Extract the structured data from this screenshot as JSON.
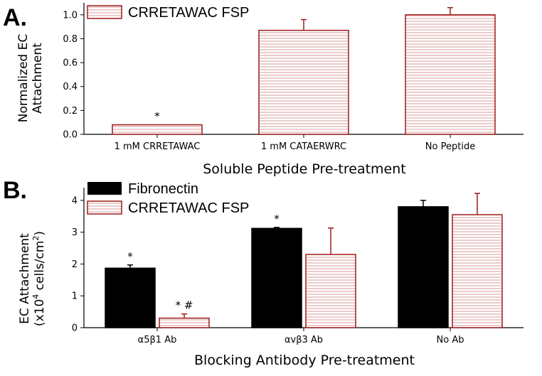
{
  "colors": {
    "hatch_line": "#d99a9a",
    "hatch_border": "#9e1b1b",
    "solid_fill": "#000000",
    "axis": "#000000"
  },
  "chart_data": [
    {
      "panel": "A.",
      "type": "bar",
      "categories": [
        "1 mM CRRETAWAC",
        "1 mM CATAERWRC",
        "No Peptide"
      ],
      "series": [
        {
          "name": "CRRETAWAC FSP",
          "style": "hatched",
          "values": [
            0.08,
            0.87,
            1.0
          ],
          "errors": [
            0.0,
            0.09,
            0.06
          ],
          "annotations": [
            "*",
            "",
            ""
          ]
        }
      ],
      "xlabel": "Soluble Peptide Pre-treatment",
      "ylabel_lines": [
        "Normalized EC",
        "Attachment"
      ],
      "ylim": [
        0,
        1.1
      ],
      "yticks": [
        "0.0",
        "0.2",
        "0.4",
        "0.6",
        "0.8",
        "1.0"
      ],
      "ytick_values": [
        0,
        0.2,
        0.4,
        0.6,
        0.8,
        1.0
      ],
      "legend_position": "top-left",
      "grid": false
    },
    {
      "panel": "B.",
      "type": "bar",
      "categories": [
        "α5β1 Ab",
        "αvβ3 Ab",
        "No Ab"
      ],
      "series": [
        {
          "name": "Fibronectin",
          "style": "solid",
          "values": [
            1.87,
            3.12,
            3.8
          ],
          "errors": [
            0.1,
            0.03,
            0.2
          ],
          "annotations": [
            "*",
            "*",
            ""
          ]
        },
        {
          "name": "CRRETAWAC FSP",
          "style": "hatched",
          "values": [
            0.3,
            2.3,
            3.55
          ],
          "errors": [
            0.13,
            0.83,
            0.67
          ],
          "annotations": [
            "* #",
            "",
            ""
          ]
        }
      ],
      "xlabel": "Blocking Antibody Pre-treatment",
      "ylabel_line1": "EC Attachment",
      "ylabel_line2": {
        "pre": "(x10",
        "sup1": "4",
        "mid": " cells/cm",
        "sup2": "2",
        "post": ")"
      },
      "ylim": [
        0,
        4.4
      ],
      "yticks": [
        "0",
        "1",
        "2",
        "3",
        "4"
      ],
      "ytick_values": [
        0,
        1,
        2,
        3,
        4
      ],
      "legend_position": "top-left",
      "grid": false
    }
  ]
}
